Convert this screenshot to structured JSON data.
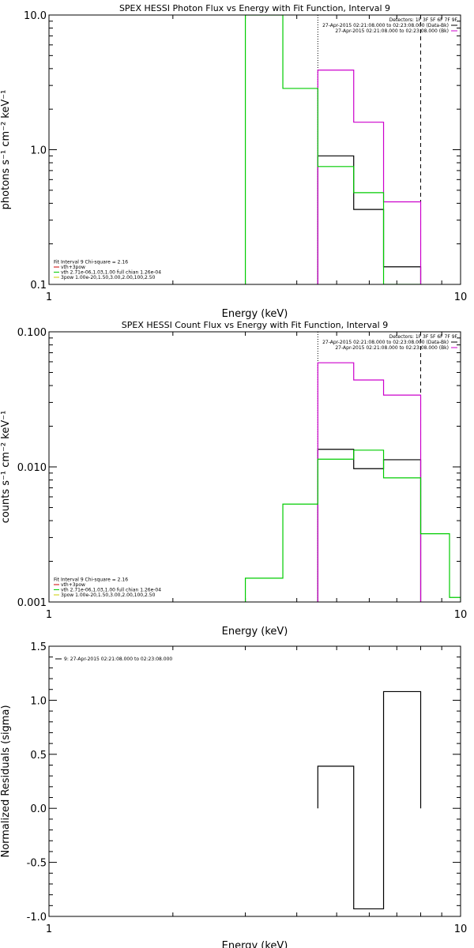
{
  "chart_data": [
    {
      "id": "photon",
      "type": "line",
      "title": "SPEX HESSI Photon Flux vs Energy with Fit Function, Interval 9",
      "xlabel": "Energy (keV)",
      "ylabel": "photons s⁻¹ cm⁻² keV⁻¹",
      "xscale": "log",
      "yscale": "log",
      "xlim": [
        1,
        10
      ],
      "ylim": [
        0.1,
        10
      ],
      "x_tick_labels": [
        "1",
        "10"
      ],
      "y_tick_labels": [
        "0.1",
        "1.0",
        "10.0"
      ],
      "vlines": [
        {
          "x": 4.5,
          "style": "dotted"
        },
        {
          "x": 8.0,
          "style": "dashed"
        }
      ],
      "legend_top_right": [
        {
          "text": "Detectors: 1F 3F 5F 6F 7F 9F",
          "color": ""
        },
        {
          "text": "27-Apr-2015 02:21:08.000 to 02:23:08.000 (Data-Bk)",
          "color": "#000000"
        },
        {
          "text": "27-Apr-2015 02:21:08.000 to 02:23:08.000 (Bk)",
          "color": "#cc00cc"
        }
      ],
      "legend_bottom_left": [
        {
          "text": "Fit Interval 9   Chi-square = 2.16",
          "color": ""
        },
        {
          "text": "vth+3pow",
          "color": "#cc0000"
        },
        {
          "text": "vth 2.71e-06,1.03,1.00  full chian 1.26e-04",
          "color": "#00cc00"
        },
        {
          "text": "3pow 1.00e-20,1.50,3.00,2.00,100,2.50",
          "color": "#cccc00"
        }
      ],
      "series": [
        {
          "name": "Data-Bk",
          "color": "#000000",
          "edges": [
            4.5,
            5.5,
            6.5,
            8.0
          ],
          "values": [
            0.9,
            0.36,
            0.135
          ]
        },
        {
          "name": "Bk",
          "color": "#cc00cc",
          "edges": [
            4.5,
            5.5,
            6.5,
            8.0
          ],
          "values": [
            3.9,
            1.6,
            0.41
          ]
        },
        {
          "name": "vth+3pow",
          "color": "#00cc00",
          "edges": [
            3.0,
            3.7,
            4.5,
            5.5,
            6.5,
            8.0
          ],
          "values": [
            10.5,
            2.85,
            0.75,
            0.48,
            0.1
          ]
        }
      ]
    },
    {
      "id": "count",
      "type": "line",
      "title": "SPEX HESSI Count Flux vs Energy with Fit Function, Interval 9",
      "xlabel": "Energy (keV)",
      "ylabel": "counts s⁻¹ cm⁻² keV⁻¹",
      "xscale": "log",
      "yscale": "log",
      "xlim": [
        1,
        10
      ],
      "ylim": [
        0.001,
        0.1
      ],
      "x_tick_labels": [
        "1",
        "10"
      ],
      "y_tick_labels": [
        "0.001",
        "0.010",
        "0.100"
      ],
      "vlines": [
        {
          "x": 4.5,
          "style": "dotted"
        },
        {
          "x": 8.0,
          "style": "dashed"
        }
      ],
      "legend_top_right": [
        {
          "text": "Detectors: 1F 3F 5F 6F 7F 9F",
          "color": ""
        },
        {
          "text": "27-Apr-2015 02:21:08.000 to 02:23:08.000 (Data-Bk)",
          "color": "#000000"
        },
        {
          "text": "27-Apr-2015 02:21:08.000 to 02:23:08.000 (Bk)",
          "color": "#cc00cc"
        }
      ],
      "legend_bottom_left": [
        {
          "text": "Fit Interval 9   Chi-square = 2.16",
          "color": ""
        },
        {
          "text": "vth+3pow",
          "color": "#cc0000"
        },
        {
          "text": "vth 2.71e-06,1.03,1.00  full chian 1.26e-04",
          "color": "#00cc00"
        },
        {
          "text": "3pow 1.00e-20,1.50,3.00,2.00,100,2.50",
          "color": "#cccc00"
        }
      ],
      "series": [
        {
          "name": "Data-Bk",
          "color": "#000000",
          "edges": [
            4.5,
            5.5,
            6.5,
            8.0
          ],
          "values": [
            0.0135,
            0.0097,
            0.0113
          ]
        },
        {
          "name": "Bk",
          "color": "#cc00cc",
          "edges": [
            4.5,
            5.5,
            6.5,
            8.0
          ],
          "values": [
            0.059,
            0.044,
            0.034
          ]
        },
        {
          "name": "vth+3pow",
          "color": "#00cc00",
          "edges": [
            3.0,
            3.7,
            4.5,
            5.5,
            6.5,
            8.0,
            9.4,
            11.0
          ],
          "values": [
            0.0015,
            0.0053,
            0.0114,
            0.0133,
            0.0083,
            0.0032,
            0.00108
          ]
        }
      ]
    },
    {
      "id": "resid",
      "type": "line",
      "title": "",
      "xlabel": "Energy (keV)",
      "ylabel": "Normalized Residuals (sigma)",
      "xscale": "log",
      "yscale": "linear",
      "xlim": [
        1,
        10
      ],
      "ylim": [
        -1.0,
        1.5
      ],
      "x_tick_labels": [
        "1",
        "10"
      ],
      "y_tick_labels": [
        "-1.0",
        "-0.5",
        "0.0",
        "0.5",
        "1.0",
        "1.5"
      ],
      "y_ticks": [
        -1.0,
        -0.5,
        0.0,
        0.5,
        1.0,
        1.5
      ],
      "vlines": [],
      "legend_top_left": [
        {
          "text": "9: 27-Apr-2015 02:21:08.000 to 02:23:08.000",
          "color": "#000000"
        }
      ],
      "series": [
        {
          "name": "",
          "color": "#000000",
          "edges": [
            4.5,
            5.5,
            6.5,
            8.0
          ],
          "values": [
            0.39,
            -0.93,
            1.08
          ]
        }
      ]
    }
  ]
}
